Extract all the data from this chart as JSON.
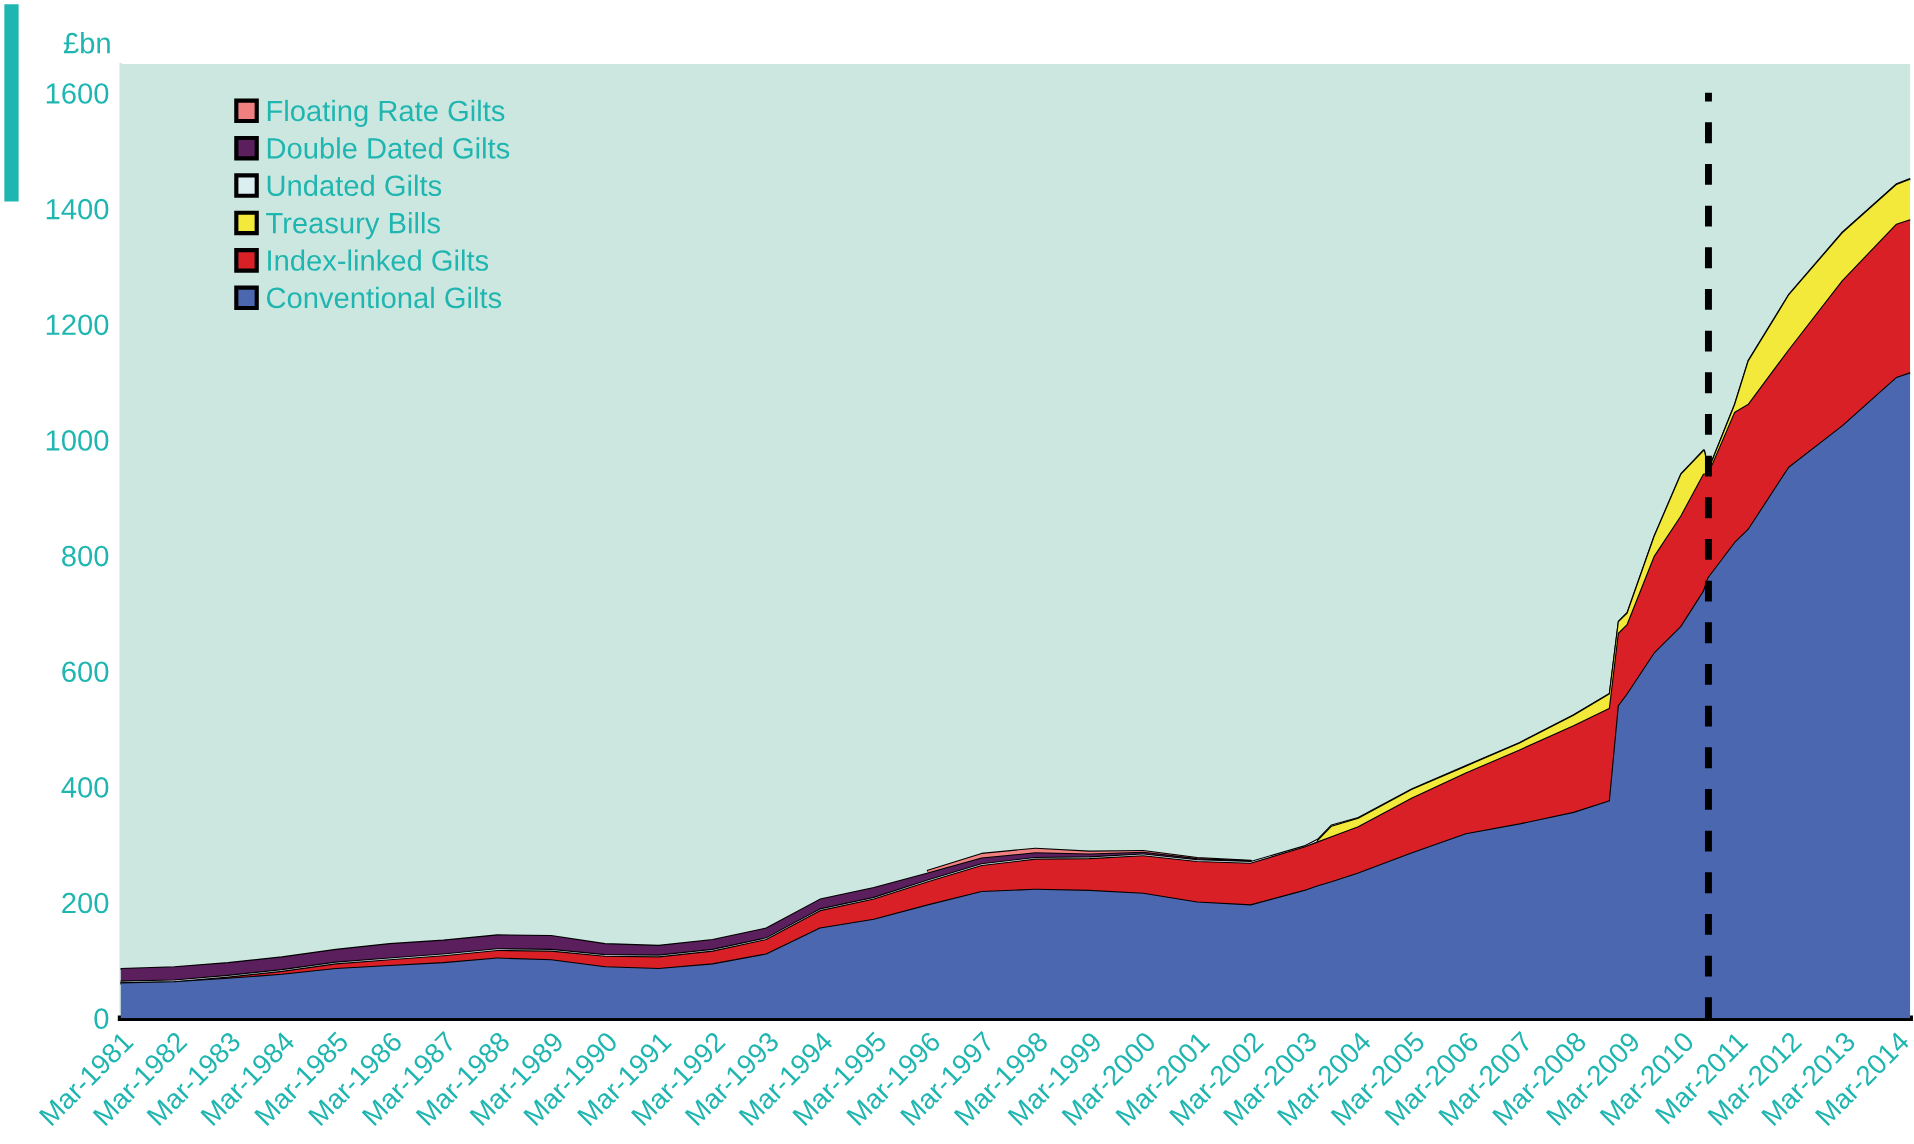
{
  "chart_data": {
    "type": "area",
    "stacked": true,
    "ylabel": "£bn",
    "legend": "top left",
    "grid": false,
    "x": [
      "1981-03",
      "1982-03",
      "1983-03",
      "1984-03",
      "1985-03",
      "1986-03",
      "1987-03",
      "1988-03",
      "1989-03",
      "1990-03",
      "1991-03",
      "1992-03",
      "1993-03",
      "1994-03",
      "1995-03",
      "1996-03",
      "1997-03",
      "1998-03",
      "1999-03",
      "2000-03",
      "2001-03",
      "2002-03",
      "2003-03",
      "2003-06",
      "2003-09",
      "2004-03",
      "2005-03",
      "2006-03",
      "2007-03",
      "2008-03",
      "2008-11",
      "2009-01",
      "2009-03",
      "2009-09",
      "2010-03",
      "2010-08",
      "2010-09",
      "2011-03",
      "2011-06",
      "2012-03",
      "2013-03",
      "2014-03",
      "2014-06"
    ],
    "series": [
      {
        "name": "Conventional Gilts",
        "color": "#4b67b0",
        "values": [
          60,
          62,
          68,
          75,
          85,
          90,
          95,
          103,
          100,
          88,
          85,
          93,
          110,
          155,
          170,
          195,
          218,
          222,
          220,
          215,
          200,
          195,
          220,
          228,
          235,
          250,
          285,
          318,
          335,
          355,
          375,
          540,
          560,
          631,
          677,
          738,
          761,
          822,
          845,
          952,
          1024,
          1107,
          1115
        ]
      },
      {
        "name": "Index-linked Gilts",
        "color": "#d92027",
        "values": [
          0,
          0,
          2,
          5,
          8,
          10,
          12,
          13,
          15,
          18,
          20,
          22,
          25,
          30,
          35,
          40,
          45,
          52,
          55,
          65,
          70,
          72,
          75,
          76,
          78,
          80,
          95,
          105,
          128,
          150,
          160,
          125,
          120,
          167,
          191,
          202,
          179,
          225,
          216,
          203,
          251,
          265,
          265
        ]
      },
      {
        "name": "Treasury Bills",
        "color": "#f2e93b",
        "values": [
          null,
          null,
          null,
          null,
          null,
          null,
          null,
          null,
          null,
          null,
          null,
          null,
          null,
          null,
          null,
          null,
          null,
          null,
          null,
          null,
          null,
          null,
          null,
          3,
          18,
          15,
          15,
          12,
          12,
          18,
          25,
          20,
          20,
          35,
          72,
          41,
          6,
          14,
          75,
          95,
          83,
          69,
          70
        ]
      },
      {
        "name": "Undated Gilts",
        "color": "#dbeef2",
        "values": [
          3,
          3,
          3,
          3,
          3,
          3,
          3,
          3,
          3,
          3,
          3,
          3,
          3,
          3,
          3,
          3,
          3,
          3,
          3,
          3,
          3,
          3,
          2,
          2,
          2,
          1,
          1,
          1,
          1,
          1,
          1,
          1,
          1,
          1,
          1,
          1,
          1,
          1,
          1,
          1,
          1,
          1,
          1
        ]
      },
      {
        "name": "Double Dated Gilts",
        "color": "#5b1f5e",
        "values": [
          22,
          23,
          22,
          22,
          22,
          25,
          24,
          24,
          24,
          19,
          17,
          17,
          17,
          17,
          17,
          12,
          10,
          8,
          5,
          3,
          2,
          1,
          null,
          null,
          null,
          null,
          null,
          null,
          null,
          null,
          null,
          null,
          null,
          null,
          null,
          null,
          null,
          null,
          null,
          null,
          null,
          null,
          null
        ]
      },
      {
        "name": "Floating Rate Gilts",
        "color": "#f08080",
        "values": [
          null,
          null,
          null,
          null,
          null,
          null,
          null,
          null,
          null,
          null,
          null,
          null,
          null,
          null,
          null,
          5,
          8,
          8,
          5,
          3,
          2,
          1,
          null,
          null,
          null,
          null,
          null,
          null,
          null,
          null,
          null,
          null,
          null,
          null,
          null,
          null,
          null,
          null,
          null,
          null,
          null,
          null,
          null
        ]
      }
    ],
    "ylim": [
      0,
      1650
    ],
    "yticks": [
      0,
      200,
      400,
      600,
      800,
      1000,
      1200,
      1400,
      1600
    ],
    "xlim": [
      "1981-03",
      "2014-06"
    ],
    "xticks": [
      {
        "value": "1981-03",
        "label": "Mar-1981"
      },
      {
        "value": "1982-03",
        "label": "Mar-1982"
      },
      {
        "value": "1983-03",
        "label": "Mar-1983"
      },
      {
        "value": "1984-03",
        "label": "Mar-1984"
      },
      {
        "value": "1985-03",
        "label": "Mar-1985"
      },
      {
        "value": "1986-03",
        "label": "Mar-1986"
      },
      {
        "value": "1987-03",
        "label": "Mar-1987"
      },
      {
        "value": "1988-03",
        "label": "Mar-1988"
      },
      {
        "value": "1989-03",
        "label": "Mar-1989"
      },
      {
        "value": "1990-03",
        "label": "Mar-1990"
      },
      {
        "value": "1991-03",
        "label": "Mar-1991"
      },
      {
        "value": "1992-03",
        "label": "Mar-1992"
      },
      {
        "value": "1993-03",
        "label": "Mar-1993"
      },
      {
        "value": "1994-03",
        "label": "Mar-1994"
      },
      {
        "value": "1995-03",
        "label": "Mar-1995"
      },
      {
        "value": "1996-03",
        "label": "Mar-1996"
      },
      {
        "value": "1997-03",
        "label": "Mar-1997"
      },
      {
        "value": "1998-03",
        "label": "Mar-1998"
      },
      {
        "value": "1999-03",
        "label": "Mar-1999"
      },
      {
        "value": "2000-03",
        "label": "Mar-2000"
      },
      {
        "value": "2001-03",
        "label": "Mar-2001"
      },
      {
        "value": "2002-03",
        "label": "Mar-2002"
      },
      {
        "value": "2003-03",
        "label": "Mar-2003"
      },
      {
        "value": "2004-03",
        "label": "Mar-2004"
      },
      {
        "value": "2005-03",
        "label": "Mar-2005"
      },
      {
        "value": "2006-03",
        "label": "Mar-2006"
      },
      {
        "value": "2007-03",
        "label": "Mar-2007"
      },
      {
        "value": "2008-03",
        "label": "Mar-2008"
      },
      {
        "value": "2009-03",
        "label": "Mar-2009"
      },
      {
        "value": "2010-03",
        "label": "Mar-2010"
      },
      {
        "value": "2011-03",
        "label": "Mar-2011"
      },
      {
        "value": "2012-03",
        "label": "Mar-2012"
      },
      {
        "value": "2013-03",
        "label": "Mar-2013"
      },
      {
        "value": "2014-03",
        "label": "Mar-2014"
      }
    ],
    "ref_lines": [
      {
        "axis": "x",
        "value": "2010-09",
        "color": "#000000",
        "line_style": "dashed"
      }
    ]
  }
}
